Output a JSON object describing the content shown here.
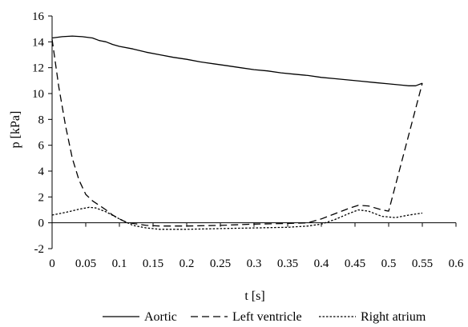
{
  "chart_data": {
    "type": "line",
    "xlabel": "t [s]",
    "ylabel": "p [kPa]",
    "xlim": [
      0,
      0.6
    ],
    "ylim": [
      -2,
      16
    ],
    "xticks": [
      "0",
      "0.05",
      "0.1",
      "0.15",
      "0.2",
      "0.25",
      "0.3",
      "0.35",
      "0.4",
      "0.45",
      "0.5",
      "0.55",
      "0.6"
    ],
    "yticks": [
      "-2",
      "0",
      "2",
      "4",
      "6",
      "8",
      "10",
      "12",
      "14",
      "16"
    ],
    "grid": false,
    "legend_position": "bottom",
    "series": [
      {
        "name": "Aortic",
        "style": "solid",
        "x": [
          0,
          0.015,
          0.03,
          0.045,
          0.06,
          0.07,
          0.08,
          0.09,
          0.1,
          0.12,
          0.14,
          0.16,
          0.18,
          0.2,
          0.22,
          0.24,
          0.26,
          0.28,
          0.3,
          0.32,
          0.34,
          0.36,
          0.38,
          0.4,
          0.42,
          0.44,
          0.46,
          0.48,
          0.5,
          0.52,
          0.53,
          0.54,
          0.55
        ],
        "y": [
          14.3,
          14.4,
          14.45,
          14.4,
          14.3,
          14.1,
          14.0,
          13.8,
          13.65,
          13.45,
          13.2,
          13.0,
          12.8,
          12.65,
          12.45,
          12.3,
          12.15,
          12.0,
          11.85,
          11.75,
          11.6,
          11.5,
          11.4,
          11.25,
          11.15,
          11.05,
          10.95,
          10.85,
          10.75,
          10.65,
          10.6,
          10.6,
          10.8
        ]
      },
      {
        "name": "Left ventricle",
        "style": "dashed",
        "x": [
          0,
          0.01,
          0.02,
          0.03,
          0.04,
          0.05,
          0.06,
          0.07,
          0.08,
          0.09,
          0.1,
          0.11,
          0.12,
          0.14,
          0.16,
          0.2,
          0.25,
          0.3,
          0.35,
          0.38,
          0.4,
          0.42,
          0.44,
          0.455,
          0.47,
          0.49,
          0.5,
          0.55
        ],
        "y": [
          14.2,
          10.5,
          7.5,
          5.0,
          3.3,
          2.2,
          1.7,
          1.35,
          1.0,
          0.6,
          0.3,
          0.05,
          -0.05,
          -0.2,
          -0.25,
          -0.25,
          -0.2,
          -0.1,
          -0.05,
          0.0,
          0.3,
          0.7,
          1.1,
          1.35,
          1.3,
          1.0,
          0.9,
          10.8
        ]
      },
      {
        "name": "Right atrium",
        "style": "dotted",
        "x": [
          0,
          0.02,
          0.04,
          0.055,
          0.065,
          0.08,
          0.1,
          0.12,
          0.14,
          0.16,
          0.2,
          0.25,
          0.3,
          0.35,
          0.38,
          0.4,
          0.42,
          0.44,
          0.455,
          0.47,
          0.49,
          0.51,
          0.53,
          0.55
        ],
        "y": [
          0.6,
          0.8,
          1.05,
          1.2,
          1.15,
          0.85,
          0.3,
          -0.2,
          -0.4,
          -0.5,
          -0.5,
          -0.45,
          -0.4,
          -0.35,
          -0.25,
          -0.1,
          0.25,
          0.7,
          1.0,
          0.9,
          0.5,
          0.4,
          0.6,
          0.75
        ]
      }
    ]
  }
}
